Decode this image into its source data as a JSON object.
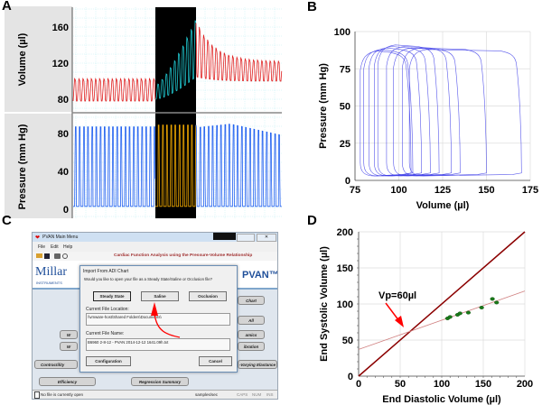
{
  "panel_labels": {
    "a": "A",
    "b": "B",
    "c": "C",
    "d": "D"
  },
  "colors": {
    "volume_trace": "#e02020",
    "volume_selected": "#20c8d0",
    "pressure_trace": "#2060f0",
    "pressure_selected": "#f0a800",
    "selection_bg": "#000000",
    "loop_color": "#3a3ae8",
    "identity_line": "#8b0000",
    "regression_line": "#d08080",
    "points": "#1a7a1a",
    "arrow": "#ff0000"
  },
  "chart_data": [
    {
      "id": "A",
      "type": "line",
      "panels": [
        {
          "ylabel": "Volume (µl)",
          "yticks": [
            "160",
            "120",
            "80"
          ],
          "ylim": [
            72,
            175
          ],
          "segments": [
            {
              "phase": "baseline",
              "min": 78,
              "max": 103
            },
            {
              "phase": "selected",
              "min_start": 80,
              "min_end": 105,
              "max_start": 95,
              "max_end": 170
            },
            {
              "phase": "recovery",
              "max_start": 168,
              "max_end": 122,
              "min": 100
            }
          ]
        },
        {
          "ylabel": "Pressure (mm Hg)",
          "yticks": [
            "80",
            "40",
            "0"
          ],
          "ylim": [
            -5,
            95
          ],
          "segments": [
            {
              "phase": "baseline",
              "min": 3,
              "max": 87
            },
            {
              "phase": "selected",
              "min": 3,
              "max": 89
            },
            {
              "phase": "recovery",
              "min": 3,
              "max_start": 86,
              "max_peak": 90,
              "max_end": 78
            }
          ]
        }
      ],
      "grid": true
    },
    {
      "id": "B",
      "type": "line",
      "xlabel": "Volume (µl)",
      "ylabel": "Pressure (mm Hg)",
      "xlim": [
        75,
        175
      ],
      "ylim": [
        0,
        100
      ],
      "xticks": [
        "75",
        "100",
        "125",
        "150",
        "175"
      ],
      "yticks": [
        "0",
        "25",
        "50",
        "75",
        "100"
      ],
      "grid": true,
      "loops": [
        {
          "esv": 78,
          "edv": 107,
          "pmax": 86
        },
        {
          "esv": 80,
          "edv": 108,
          "pmax": 87
        },
        {
          "esv": 83,
          "edv": 113,
          "pmax": 88
        },
        {
          "esv": 86,
          "edv": 118,
          "pmax": 89
        },
        {
          "esv": 88,
          "edv": 123,
          "pmax": 90
        },
        {
          "esv": 93,
          "edv": 130,
          "pmax": 89
        },
        {
          "esv": 97,
          "edv": 135,
          "pmax": 88
        },
        {
          "esv": 102,
          "edv": 150,
          "pmax": 88
        },
        {
          "esv": 106,
          "edv": 170,
          "pmax": 87
        }
      ]
    },
    {
      "id": "D",
      "type": "scatter",
      "xlabel": "End Diastolic Volume (µl)",
      "ylabel": "End Systolic Volume (µl)",
      "xlim": [
        0,
        200
      ],
      "ylim": [
        0,
        200
      ],
      "xticks": [
        "0",
        "50",
        "100",
        "150",
        "200"
      ],
      "yticks": [
        "0",
        "50",
        "100",
        "150",
        "200"
      ],
      "grid": true,
      "points": [
        [
          107,
          80
        ],
        [
          110,
          82
        ],
        [
          119,
          85
        ],
        [
          122,
          87
        ],
        [
          132,
          88
        ],
        [
          148,
          95
        ],
        [
          161,
          107
        ],
        [
          166,
          102
        ]
      ],
      "identity_line": {
        "slope": 1,
        "intercept": 0
      },
      "regression_line": {
        "slope": 0.405,
        "intercept": 37
      },
      "annotation": "Vp=60µl"
    }
  ],
  "app": {
    "window_title": "PVAN Main Menu",
    "menu": [
      "File",
      "Edit",
      "Help"
    ],
    "header_text": "Cardiac Function Analysis using the Pressure-Volume Relationship",
    "logo_text": "Millar",
    "logo_subtext": "INSTRUMENTS",
    "product": "PVAN™",
    "bg_buttons": {
      "contractility": "Contractility",
      "efficiency": "Efficiency",
      "regression": "Regression Summary",
      "chart": "Chart",
      "all": "All",
      "dynamics": "amics",
      "calibration": "ibration",
      "elastance": "-Varying Elastance",
      "left1": "W",
      "left2": "W"
    },
    "dialog": {
      "title": "Import From ADI Chart",
      "question": "Would you like to open your file as a Steady State/Saline or Occlusion file?",
      "steady_state": "Steady State",
      "saline": "Saline",
      "occlusion": "Occlusion",
      "location_label": "Current File Location:",
      "location_value": "\\\\vmware-host\\Shared Folders\\Documents\\",
      "name_label": "Current File Name:",
      "name_value": "B6960 2-8-12 - PVAN 2014-12-12 1641.09h.txt",
      "configuration": "Configuration",
      "cancel": "Cancel"
    },
    "status": {
      "message": "No file is currently open",
      "rate": "samples/sec",
      "caps": "CAPS",
      "num": "NUM",
      "ins": "INS"
    }
  }
}
